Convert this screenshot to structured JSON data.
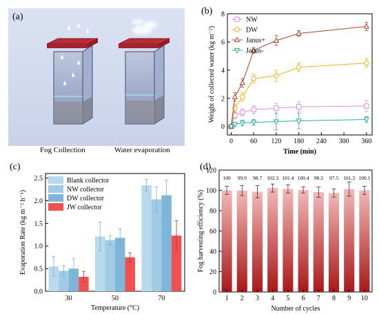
{
  "panel_a": {
    "label": "(a)",
    "captions": [
      "Fog Collection",
      "Water evaporation"
    ]
  },
  "colors": {
    "NW": "#d98fd9",
    "DW": "#e8b020",
    "Janus+": "#a8432c",
    "Janus-": "#2aa8a8",
    "blank": "#b9d9ec",
    "nw_bar": "#9fcbe5",
    "dw_bar": "#7db6d8",
    "jw_bar": "#f05050",
    "cycle_bar_top": "#f3b8b8",
    "cycle_bar_bottom": "#a81818"
  },
  "chart_data": [
    {
      "panel": "(b)",
      "type": "line",
      "xlabel": "Time (min)",
      "ylabel": "Weight of collected water (kg m⁻²)",
      "xlim": [
        -10,
        375
      ],
      "ylim": [
        -0.6,
        8
      ],
      "xticks": [
        0,
        60,
        120,
        180,
        240,
        300,
        360
      ],
      "yticks": [
        0,
        2,
        4,
        6,
        8
      ],
      "legend_position": "top-left",
      "x": [
        0,
        10,
        30,
        60,
        120,
        180,
        360
      ],
      "series": [
        {
          "name": "NW",
          "marker": "square",
          "values": [
            0,
            0.8,
            1.0,
            1.2,
            1.3,
            1.4,
            1.45
          ],
          "errors": [
            0.1,
            0.25,
            0.25,
            0.3,
            0.35,
            0.35,
            0.4
          ]
        },
        {
          "name": "DW",
          "marker": "circle",
          "values": [
            0,
            1.3,
            2.1,
            3.4,
            3.6,
            4.2,
            4.5
          ],
          "errors": [
            0.1,
            0.3,
            0.3,
            0.3,
            0.4,
            0.3,
            0.3
          ]
        },
        {
          "name": "Janus+",
          "marker": "triangle-up",
          "values": [
            0,
            2.1,
            3.1,
            5.4,
            6.1,
            6.6,
            7.1
          ],
          "errors": [
            0.1,
            0.3,
            0.3,
            0.2,
            0.35,
            0.2,
            0.3
          ]
        },
        {
          "name": "Janus-",
          "marker": "triangle-down",
          "values": [
            0,
            0.15,
            0.25,
            0.3,
            0.35,
            0.4,
            0.5
          ],
          "errors": [
            0.1,
            0.15,
            0.2,
            0.2,
            0.6,
            0.55,
            0.2
          ]
        }
      ]
    },
    {
      "panel": "(c)",
      "type": "bar",
      "xlabel": "Temperature (°C)",
      "ylabel": "Evaporation Rate (kg m⁻² h⁻¹)",
      "ylim": [
        0,
        2.6
      ],
      "yticks": [
        0.0,
        0.5,
        1.0,
        1.5,
        2.0,
        2.5
      ],
      "categories": [
        "30",
        "50",
        "70"
      ],
      "legend_position": "top-left",
      "series": [
        {
          "name": "Blank collector",
          "values": [
            0.55,
            1.21,
            2.34
          ],
          "errors": [
            0.22,
            0.32,
            0.13
          ]
        },
        {
          "name": "NW collector",
          "values": [
            0.45,
            1.13,
            2.03
          ],
          "errors": [
            0.12,
            0.1,
            0.28
          ]
        },
        {
          "name": "DW collector",
          "values": [
            0.5,
            1.18,
            2.12
          ],
          "errors": [
            0.22,
            0.2,
            0.33
          ]
        },
        {
          "name": "JW collector",
          "values": [
            0.32,
            0.75,
            1.23
          ],
          "errors": [
            0.12,
            0.1,
            0.33
          ]
        }
      ]
    },
    {
      "panel": "(d)",
      "type": "bar",
      "xlabel": "Number of cycles",
      "ylabel": "Fog harvesting efficiency (%)",
      "ylim": [
        0,
        120
      ],
      "yticks": [
        0,
        20,
        40,
        60,
        80,
        100,
        120
      ],
      "categories": [
        "1",
        "2",
        "3",
        "4",
        "5",
        "6",
        "7",
        "8",
        "9",
        "10"
      ],
      "values": [
        100,
        99.9,
        98.7,
        102.3,
        101.4,
        100.4,
        98.3,
        97.5,
        101.3,
        100.1
      ],
      "data_labels": [
        "100",
        "99.9",
        "98.7",
        "102.3",
        "101.4",
        "100.4",
        "98.3",
        "97.5",
        "101.3",
        "100.1"
      ],
      "errors": [
        4,
        5,
        6,
        4,
        4,
        3,
        5,
        4,
        7,
        4
      ]
    }
  ]
}
